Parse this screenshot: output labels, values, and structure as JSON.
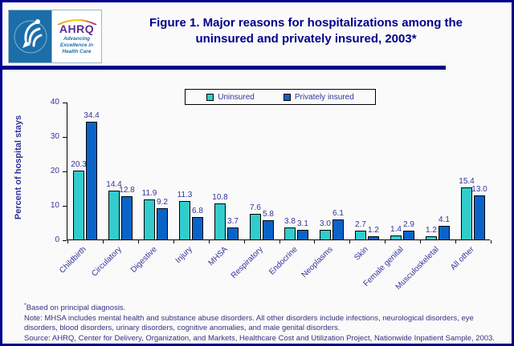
{
  "header": {
    "title_line1": "Figure 1. Major reasons for hospitalizations among the",
    "title_line2": "uninsured and privately insured, 2003*",
    "logo": {
      "wordmark": "AHRQ",
      "tagline": "Advancing\nExcellence in\nHealth Care"
    }
  },
  "chart_data": {
    "type": "bar",
    "title": "",
    "xlabel": "",
    "ylabel": "Percent of hospital stays",
    "ylim": [
      0,
      40
    ],
    "yticks": [
      0,
      10,
      20,
      30,
      40
    ],
    "grid": false,
    "legend_position": "top",
    "categories": [
      "Childbirth",
      "Circulatory",
      "Digestive",
      "Injury",
      "MHSA",
      "Respiratory",
      "Endocrine",
      "Neoplasms",
      "Skin",
      "Female genital",
      "Musculoskeletal",
      "All other"
    ],
    "series": [
      {
        "name": "Uninsured",
        "color": "#33CCCC",
        "values": [
          20.3,
          14.4,
          11.9,
          11.3,
          10.8,
          7.6,
          3.8,
          3.0,
          2.7,
          1.4,
          1.2,
          15.4
        ]
      },
      {
        "name": "Privately insured",
        "color": "#0A64C8",
        "values": [
          34.4,
          12.8,
          9.2,
          6.8,
          3.7,
          5.8,
          3.1,
          6.1,
          1.2,
          2.9,
          4.1,
          13.0
        ]
      }
    ]
  },
  "footnotes": {
    "diagnosis_sup": "*",
    "diagnosis": "Based on principal diagnosis.",
    "note": "Note: MHSA includes mental health and substance abuse disorders. All other disorders include infections, neurological disorders, eye disorders, blood disorders, urinary disorders, cognitive anomalies, and male genital disorders.",
    "source": "Source: AHRQ, Center for Delivery, Organization, and Markets, Healthcare Cost and Utilization Project, Nationwide Inpatient Sample, 2003."
  },
  "colors": {
    "border_navy": "#00008B",
    "axis_text": "#333399",
    "uninsured": "#33CCCC",
    "privately_insured": "#0A64C8",
    "background": "#FAFAFA"
  }
}
